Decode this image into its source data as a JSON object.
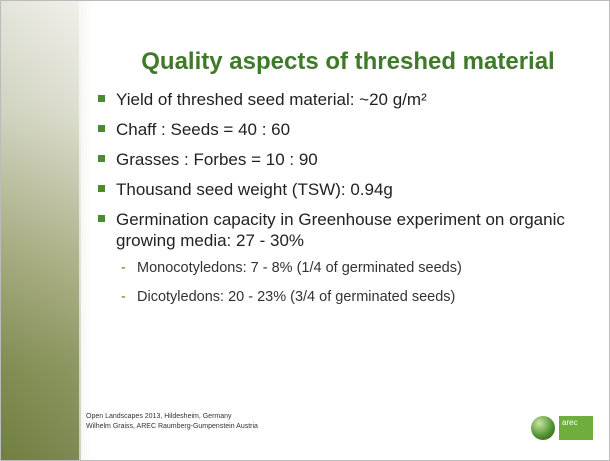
{
  "header": {
    "title": "Quality aspects of threshed material"
  },
  "bullets": [
    "Yield of threshed seed material: ~20 g/m²",
    "Chaff : Seeds  = 40 : 60",
    "Grasses : Forbes  = 10 : 90",
    "Thousand seed weight (TSW): 0.94g",
    "Germination capacity in Greenhouse experiment on organic growing media: 27 - 30%"
  ],
  "sub_bullets": [
    "Monocotyledons: 7 - 8% (1/4 of germinated seeds)",
    "Dicotyledons: 20 - 23% (3/4 of germinated seeds)"
  ],
  "footer": [
    "Open Landscapes 2013, Hildesheim, Germany",
    "Wilhelm Graiss, AREC Raumberg-Gumpenstein Austria"
  ],
  "logo": {
    "text": "arec"
  }
}
